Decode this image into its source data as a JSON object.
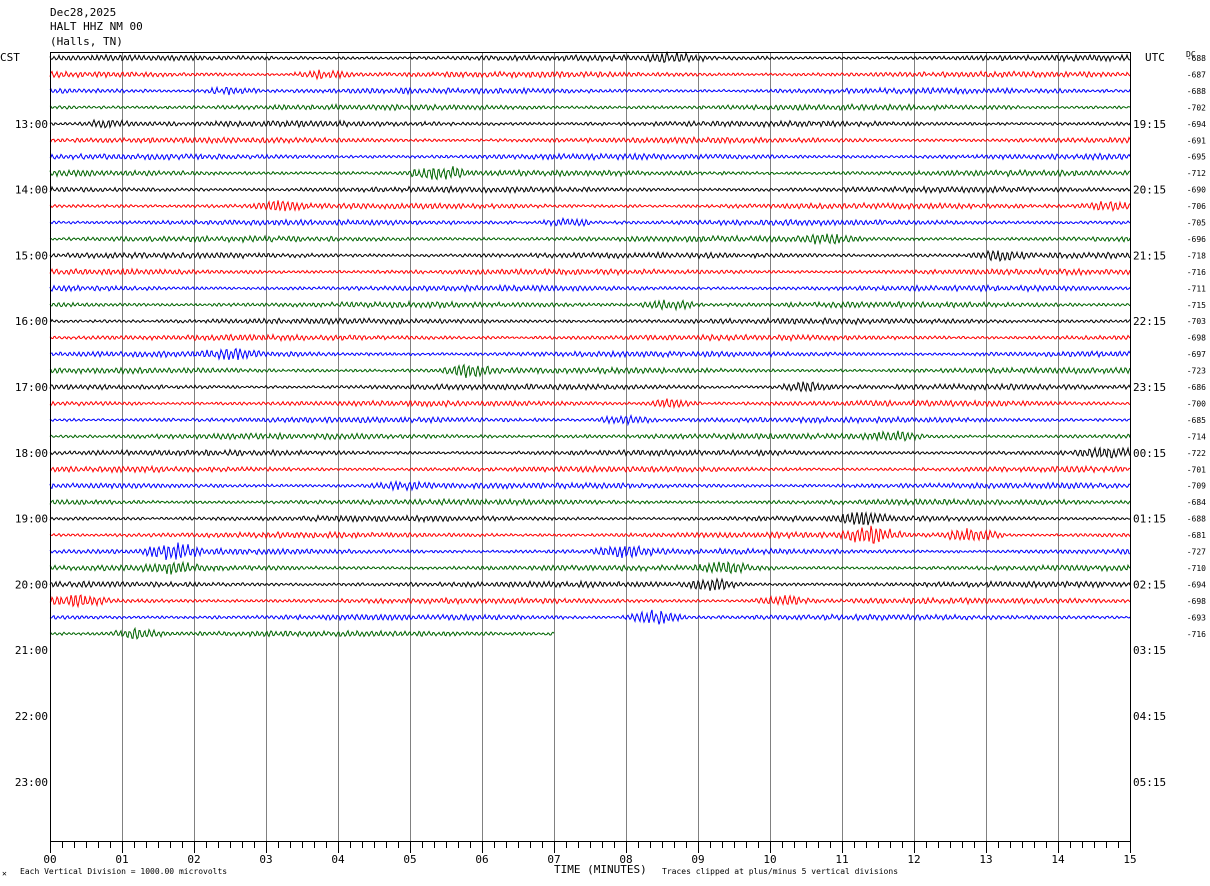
{
  "header": {
    "date": "Dec28,2025",
    "station": "HALT HHZ NM 00",
    "location": "(Halls, TN)"
  },
  "left_timezone": "CST",
  "right_timezone": "UTC",
  "dc_label": "DC",
  "footer": {
    "scale_note": "Each Vertical Division = 1000.00 microvolts",
    "xlabel": "TIME (MINUTES)",
    "clip_note": "Traces clipped at plus/minus 5 vertical divisions",
    "corner_mark": "✕"
  },
  "colors": {
    "trace_cycle": [
      "#000000",
      "#ff0000",
      "#0000ff",
      "#006400"
    ],
    "grid": "#808080",
    "frame": "#000000"
  },
  "chart_data": {
    "type": "line",
    "title": "HALT HHZ NM 00",
    "xlabel": "TIME (MINUTES)",
    "xlim": [
      0,
      15
    ],
    "x_ticks": [
      "00",
      "01",
      "02",
      "03",
      "04",
      "05",
      "06",
      "07",
      "08",
      "09",
      "10",
      "11",
      "12",
      "13",
      "14",
      "15"
    ],
    "rows_total": 48,
    "rows_with_data": 36,
    "last_row_end_minute": 7.0,
    "left_hour_labels": [
      "13:00",
      "14:00",
      "15:00",
      "16:00",
      "17:00",
      "18:00",
      "19:00",
      "20:00",
      "21:00",
      "22:00",
      "23:00"
    ],
    "right_hour_labels": [
      "19:15",
      "20:15",
      "21:15",
      "22:15",
      "23:15",
      "00:15",
      "01:15",
      "02:15",
      "03:15",
      "04:15",
      "05:15"
    ],
    "dc_offsets": [
      -688,
      -687,
      -688,
      -702,
      -694,
      -691,
      -695,
      -712,
      -690,
      -706,
      -705,
      -696,
      -718,
      -716,
      -711,
      -715,
      -703,
      -698,
      -697,
      -723,
      -686,
      -700,
      -685,
      -714,
      -722,
      -701,
      -709,
      -684,
      -688,
      -681,
      -727,
      -710,
      -694,
      -698,
      -693,
      -716
    ],
    "events": [
      {
        "row": 0,
        "minute": 8.7,
        "amp": 0.8
      },
      {
        "row": 1,
        "minute": 3.8,
        "amp": 0.8
      },
      {
        "row": 2,
        "minute": 2.5,
        "amp": 0.7
      },
      {
        "row": 4,
        "minute": 0.8,
        "amp": 0.8
      },
      {
        "row": 7,
        "minute": 5.4,
        "amp": 1.6
      },
      {
        "row": 9,
        "minute": 3.2,
        "amp": 0.8
      },
      {
        "row": 9,
        "minute": 14.7,
        "amp": 1.0
      },
      {
        "row": 10,
        "minute": 7.2,
        "amp": 0.7
      },
      {
        "row": 11,
        "minute": 10.8,
        "amp": 0.9
      },
      {
        "row": 12,
        "minute": 13.2,
        "amp": 1.0
      },
      {
        "row": 15,
        "minute": 8.6,
        "amp": 1.0
      },
      {
        "row": 18,
        "minute": 2.5,
        "amp": 0.8
      },
      {
        "row": 19,
        "minute": 5.8,
        "amp": 1.2
      },
      {
        "row": 20,
        "minute": 10.5,
        "amp": 1.0
      },
      {
        "row": 21,
        "minute": 8.6,
        "amp": 0.8
      },
      {
        "row": 22,
        "minute": 8.0,
        "amp": 0.9
      },
      {
        "row": 23,
        "minute": 11.7,
        "amp": 0.9
      },
      {
        "row": 24,
        "minute": 14.7,
        "amp": 0.9
      },
      {
        "row": 26,
        "minute": 4.9,
        "amp": 0.8
      },
      {
        "row": 28,
        "minute": 11.3,
        "amp": 1.2
      },
      {
        "row": 29,
        "minute": 11.4,
        "amp": 1.9
      },
      {
        "row": 29,
        "minute": 12.8,
        "amp": 1.4
      },
      {
        "row": 30,
        "minute": 1.7,
        "amp": 1.7
      },
      {
        "row": 30,
        "minute": 8.0,
        "amp": 1.1
      },
      {
        "row": 31,
        "minute": 1.7,
        "amp": 1.0
      },
      {
        "row": 31,
        "minute": 9.4,
        "amp": 1.0
      },
      {
        "row": 32,
        "minute": 9.2,
        "amp": 1.1
      },
      {
        "row": 33,
        "minute": 0.4,
        "amp": 1.0
      },
      {
        "row": 33,
        "minute": 10.2,
        "amp": 0.9
      },
      {
        "row": 34,
        "minute": 8.4,
        "amp": 1.6
      },
      {
        "row": 35,
        "minute": 1.2,
        "amp": 0.9
      }
    ]
  }
}
